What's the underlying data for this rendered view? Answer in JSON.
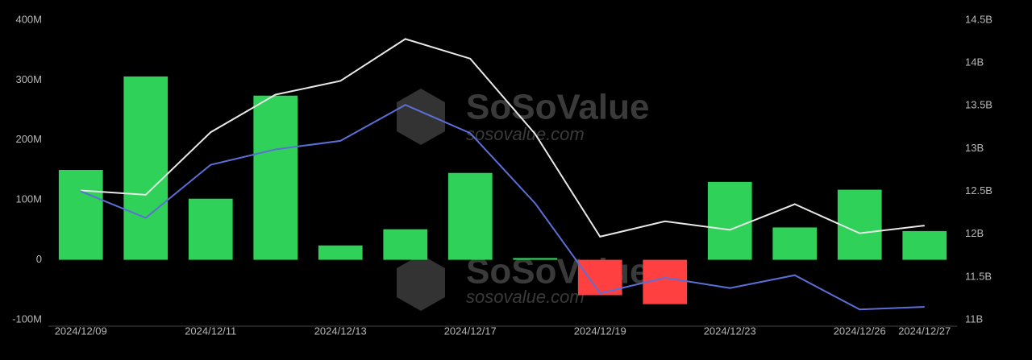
{
  "chart_data": {
    "type": "bar_line",
    "watermark": {
      "title": "SoSoValue",
      "url": "sosovalue.com"
    },
    "categories": [
      "2024/12/09",
      null,
      "2024/12/11",
      null,
      "2024/12/13",
      null,
      "2024/12/17",
      null,
      "2024/12/19",
      null,
      "2024/12/23",
      null,
      "2024/12/26",
      "2024/12/27"
    ],
    "series": [
      {
        "type": "bar",
        "color": "#30d158",
        "negative_color": "#ff4040",
        "values": [
          150,
          306,
          102,
          274,
          24,
          51,
          145,
          3,
          -59,
          -74,
          130,
          54,
          117,
          48
        ]
      },
      {
        "type": "line",
        "axis": "y2",
        "color": "#e8e8e8",
        "values": [
          12.51,
          12.46,
          13.19,
          13.63,
          13.79,
          14.28,
          14.05,
          13.17,
          11.97,
          12.15,
          12.05,
          12.35,
          12.01,
          12.1
        ]
      },
      {
        "type": "line",
        "axis": "y2",
        "color": "#5b6fd6",
        "values": [
          12.5,
          12.19,
          12.81,
          12.99,
          13.09,
          13.51,
          13.18,
          12.36,
          11.31,
          11.49,
          11.37,
          11.52,
          11.12,
          11.15
        ]
      }
    ],
    "ylim": [
      -100,
      400
    ],
    "yticks": [
      {
        "value": -100,
        "label": "-100M"
      },
      0,
      {
        "value": 100,
        "label": "100M"
      },
      {
        "value": 200,
        "label": "200M"
      },
      {
        "value": 300,
        "label": "300M"
      },
      {
        "value": 400,
        "label": "400M"
      }
    ],
    "y2lim": [
      11,
      14.5
    ],
    "y2ticks": [
      {
        "value": 11,
        "label": "11B"
      },
      {
        "value": 11.5,
        "label": "11.5B"
      },
      {
        "value": 12,
        "label": "12B"
      },
      {
        "value": 12.5,
        "label": "12.5B"
      },
      {
        "value": 13,
        "label": "13B"
      },
      {
        "value": 13.5,
        "label": "13.5B"
      },
      {
        "value": 14,
        "label": "14B"
      },
      {
        "value": 14.5,
        "label": "14.5B"
      }
    ]
  }
}
